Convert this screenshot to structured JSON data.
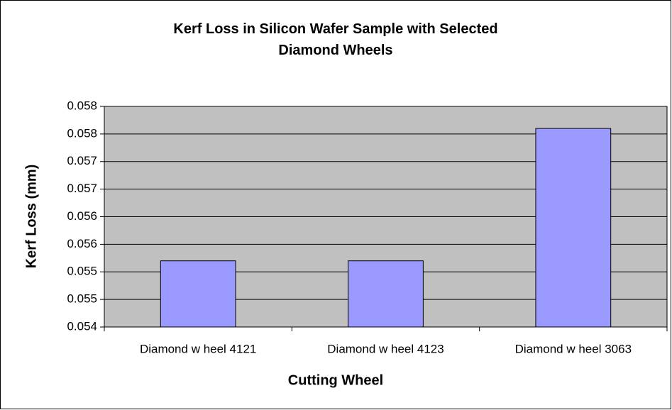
{
  "chart_data": {
    "type": "bar",
    "title": "Kerf Loss in Silicon Wafer Sample with Selected Diamond Wheels",
    "x_label": "Cutting Wheel",
    "y_label": "Kerf Loss (mm)",
    "categories": [
      "Diamond w heel 4121",
      "Diamond w heel 4123",
      "Diamond w heel 3063"
    ],
    "values": [
      0.0552,
      0.0552,
      0.0576
    ],
    "color": "#9999ff",
    "ylim": [
      0.054,
      0.058
    ],
    "yticks": [
      0.054,
      {
        "value": 0.0545,
        "label": "0.055"
      },
      0.055,
      {
        "value": 0.0555,
        "label": "0.056"
      },
      0.056,
      {
        "value": 0.0565,
        "label": "0.057"
      },
      0.057,
      {
        "value": 0.0575,
        "label": "0.058"
      },
      0.058
    ],
    "grid": true,
    "plot_background": "#c0c0c0"
  }
}
